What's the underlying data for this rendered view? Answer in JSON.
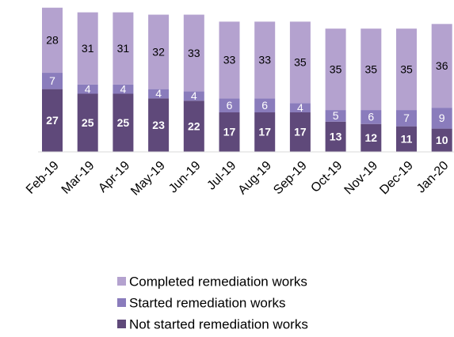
{
  "chart_data": {
    "type": "stacked_bar",
    "categories": [
      "Feb-19",
      "Mar-19",
      "Apr-19",
      "May-19",
      "Jun-19",
      "Jul-19",
      "Aug-19",
      "Sep-19",
      "Oct-19",
      "Nov-19",
      "Dec-19",
      "Jan-20"
    ],
    "series": [
      {
        "name": "Not started remediation works",
        "color": "#5f497a",
        "values": [
          27,
          25,
          25,
          23,
          22,
          17,
          17,
          17,
          13,
          12,
          11,
          10
        ]
      },
      {
        "name": "Started remediation works",
        "color": "#8a7cbc",
        "values": [
          7,
          4,
          4,
          4,
          4,
          6,
          6,
          4,
          5,
          6,
          7,
          9
        ]
      },
      {
        "name": "Completed remediation works",
        "color": "#b4a2cf",
        "values": [
          28,
          31,
          31,
          32,
          33,
          33,
          33,
          35,
          35,
          35,
          35,
          36
        ]
      }
    ]
  }
}
